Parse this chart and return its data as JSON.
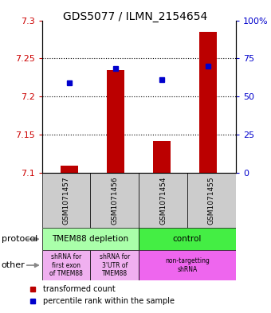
{
  "title": "GDS5077 / ILMN_2154654",
  "samples": [
    "GSM1071457",
    "GSM1071456",
    "GSM1071454",
    "GSM1071455"
  ],
  "red_values": [
    7.11,
    7.235,
    7.142,
    7.285
  ],
  "blue_values": [
    7.218,
    7.237,
    7.222,
    7.24
  ],
  "ylim_left": [
    7.1,
    7.3
  ],
  "ylim_right": [
    0,
    100
  ],
  "yticks_left": [
    7.1,
    7.15,
    7.2,
    7.25,
    7.3
  ],
  "yticks_right": [
    0,
    25,
    50,
    75,
    100
  ],
  "ytick_labels_right": [
    "0",
    "25",
    "50",
    "75",
    "100%"
  ],
  "dotted_lines": [
    7.15,
    7.2,
    7.25
  ],
  "protocol_labels": [
    "TMEM88 depletion",
    "control"
  ],
  "protocol_colors": [
    "#aaffaa",
    "#44ee44"
  ],
  "other_labels_left1": "shRNA for\nfirst exon\nof TMEM88",
  "other_labels_left2": "shRNA for\n3'UTR of\nTMEM88",
  "other_labels_right": "non-targetting\nshRNA",
  "other_color_left": "#f0b0f0",
  "other_color_right": "#ee66ee",
  "legend_red": "transformed count",
  "legend_blue": "percentile rank within the sample",
  "bar_color": "#bb0000",
  "dot_color": "#0000cc",
  "bg_color": "#cccccc",
  "left_label_color": "#cc0000",
  "right_label_color": "#0000cc",
  "title_fontsize": 10
}
